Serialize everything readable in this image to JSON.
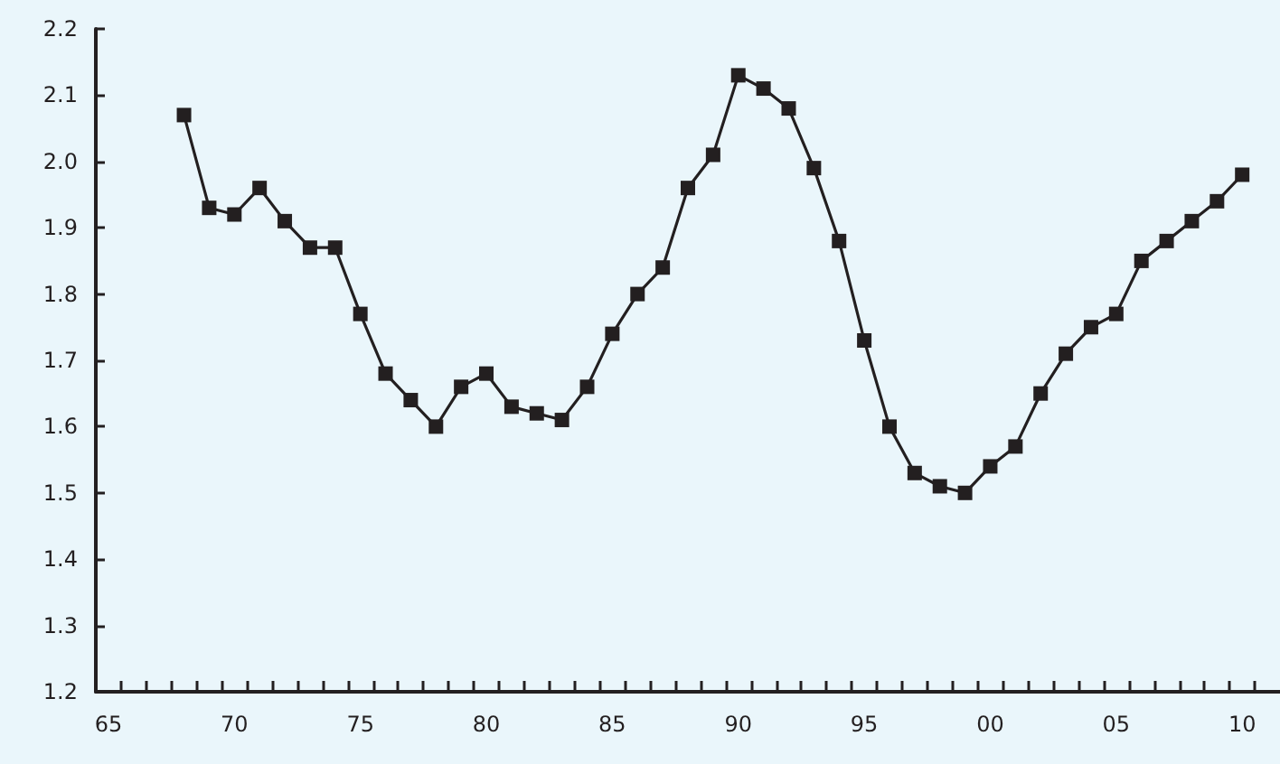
{
  "chart_data": {
    "type": "line",
    "marker": "square",
    "line_style": "solid",
    "grid": false,
    "x": [
      1968,
      1969,
      1970,
      1971,
      1972,
      1973,
      1974,
      1975,
      1976,
      1977,
      1978,
      1979,
      1980,
      1981,
      1982,
      1983,
      1984,
      1985,
      1986,
      1987,
      1988,
      1989,
      1990,
      1991,
      1992,
      1993,
      1994,
      1995,
      1996,
      1997,
      1998,
      1999,
      2000,
      2001,
      2002,
      2003,
      2004,
      2005,
      2006,
      2007,
      2008,
      2009,
      2010
    ],
    "series": [
      {
        "color": "#231f20",
        "values": [
          2.07,
          1.93,
          1.92,
          1.96,
          1.91,
          1.87,
          1.87,
          1.77,
          1.68,
          1.64,
          1.6,
          1.66,
          1.68,
          1.63,
          1.62,
          1.61,
          1.66,
          1.74,
          1.8,
          1.84,
          1.96,
          2.01,
          2.13,
          2.11,
          2.08,
          1.99,
          1.88,
          1.73,
          1.6,
          1.53,
          1.51,
          1.5,
          1.54,
          1.57,
          1.65,
          1.71,
          1.75,
          1.77,
          1.85,
          1.88,
          1.91,
          1.94,
          1.98
        ]
      }
    ],
    "xlim": [
      1964.5,
      2011.5
    ],
    "xticks": [
      {
        "value": 1965,
        "label": "65"
      },
      {
        "value": 1970,
        "label": "70"
      },
      {
        "value": 1975,
        "label": "75"
      },
      {
        "value": 1980,
        "label": "80"
      },
      {
        "value": 1985,
        "label": "85"
      },
      {
        "value": 1990,
        "label": "90"
      },
      {
        "value": 1995,
        "label": "95"
      },
      {
        "value": 2000,
        "label": "00"
      },
      {
        "value": 2005,
        "label": "05"
      },
      {
        "value": 2010,
        "label": "10"
      },
      {
        "value": 1965.5,
        "label": null
      },
      {
        "value": 1966.5,
        "label": null
      },
      {
        "value": 1967.5,
        "label": null
      },
      {
        "value": 1968.5,
        "label": null
      },
      {
        "value": 1969.5,
        "label": null
      },
      {
        "value": 1970.5,
        "label": null
      },
      {
        "value": 1971.5,
        "label": null
      },
      {
        "value": 1972.5,
        "label": null
      },
      {
        "value": 1973.5,
        "label": null
      },
      {
        "value": 1974.5,
        "label": null
      },
      {
        "value": 1975.5,
        "label": null
      },
      {
        "value": 1976.5,
        "label": null
      },
      {
        "value": 1977.5,
        "label": null
      },
      {
        "value": 1978.5,
        "label": null
      },
      {
        "value": 1979.5,
        "label": null
      },
      {
        "value": 1980.5,
        "label": null
      },
      {
        "value": 1981.5,
        "label": null
      },
      {
        "value": 1982.5,
        "label": null
      },
      {
        "value": 1983.5,
        "label": null
      },
      {
        "value": 1984.5,
        "label": null
      },
      {
        "value": 1985.5,
        "label": null
      },
      {
        "value": 1986.5,
        "label": null
      },
      {
        "value": 1987.5,
        "label": null
      },
      {
        "value": 1988.5,
        "label": null
      },
      {
        "value": 1989.5,
        "label": null
      },
      {
        "value": 1990.5,
        "label": null
      },
      {
        "value": 1991.5,
        "label": null
      },
      {
        "value": 1992.5,
        "label": null
      },
      {
        "value": 1993.5,
        "label": null
      },
      {
        "value": 1994.5,
        "label": null
      },
      {
        "value": 1995.5,
        "label": null
      },
      {
        "value": 1996.5,
        "label": null
      },
      {
        "value": 1997.5,
        "label": null
      },
      {
        "value": 1998.5,
        "label": null
      },
      {
        "value": 1999.5,
        "label": null
      },
      {
        "value": 2000.5,
        "label": null
      },
      {
        "value": 2001.5,
        "label": null
      },
      {
        "value": 2002.5,
        "label": null
      },
      {
        "value": 2003.5,
        "label": null
      },
      {
        "value": 2004.5,
        "label": null
      },
      {
        "value": 2005.5,
        "label": null
      },
      {
        "value": 2006.5,
        "label": null
      },
      {
        "value": 2007.5,
        "label": null
      },
      {
        "value": 2008.5,
        "label": null
      },
      {
        "value": 2009.5,
        "label": null
      },
      {
        "value": 2010.5,
        "label": null
      }
    ],
    "ylim": [
      1.2,
      2.2
    ],
    "yticks": [
      1.2,
      1.3,
      1.4,
      1.5,
      1.6,
      1.7,
      1.8,
      1.9,
      {
        "value": 2,
        "label": "2.0"
      },
      2.1,
      2.2
    ]
  }
}
